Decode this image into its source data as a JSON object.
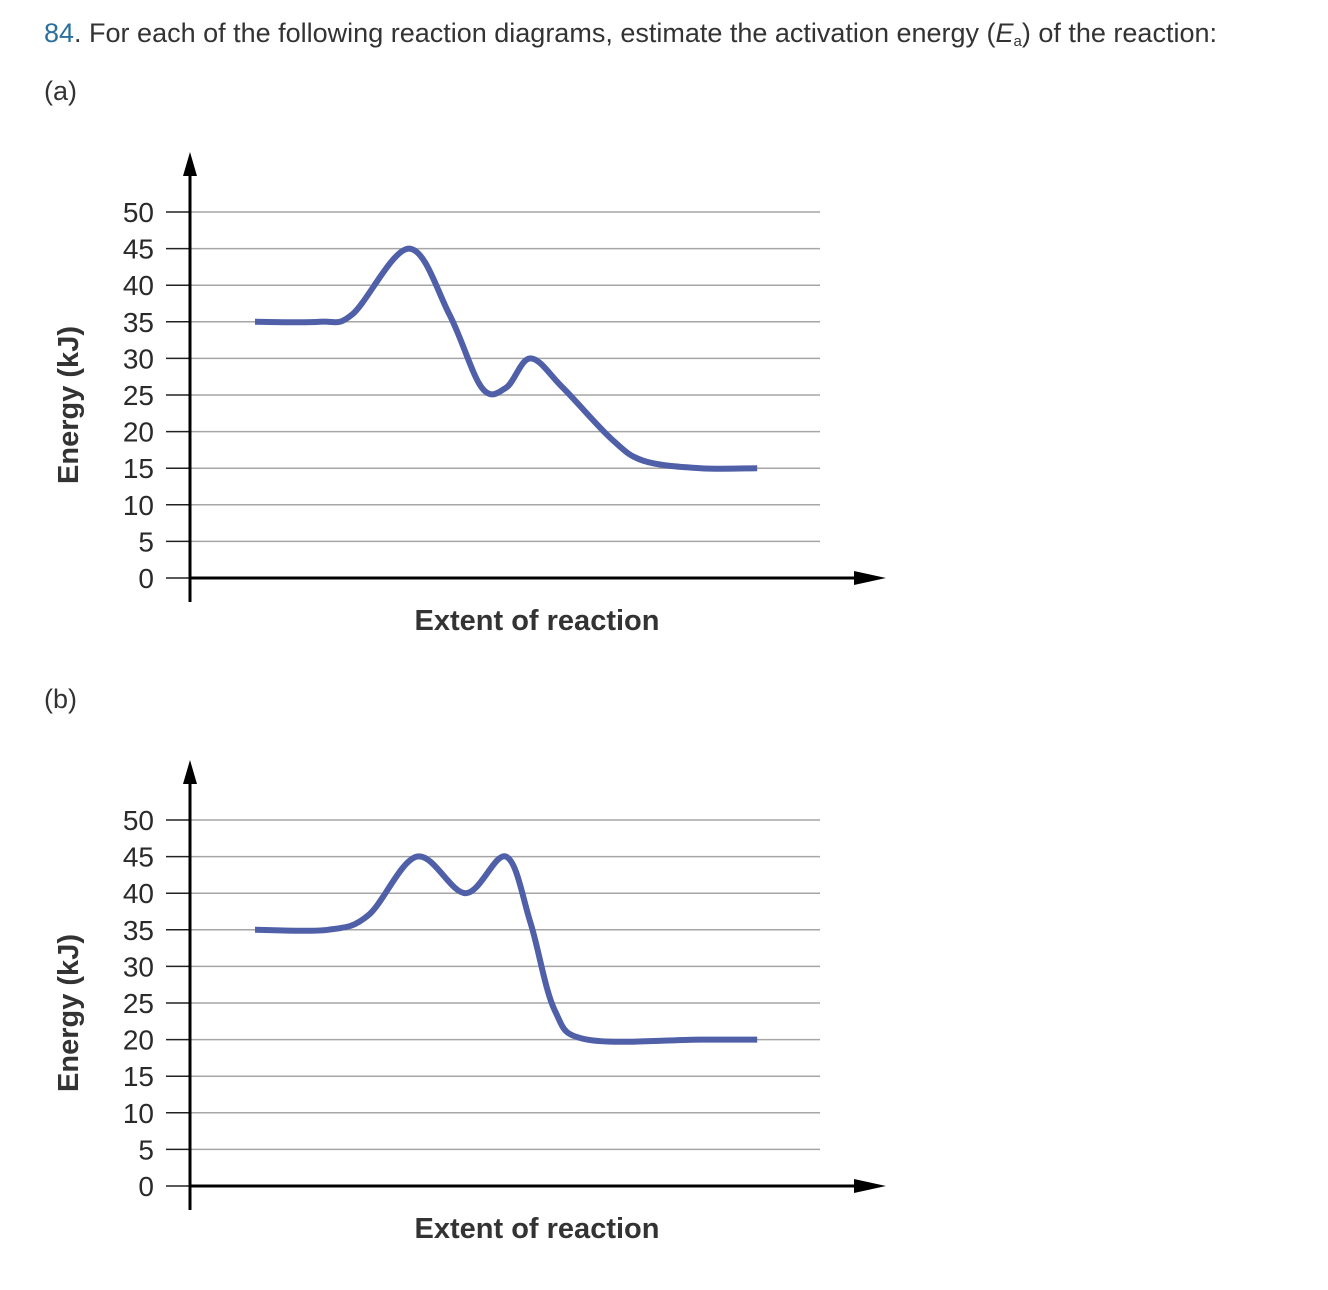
{
  "question": {
    "number": "84",
    "text_before": ". For each of the following reaction diagrams, estimate the activation energy (",
    "var": "E",
    "subscript": "a",
    "text_after": ") of the reaction:"
  },
  "parts": [
    {
      "label": "(a)"
    },
    {
      "label": "(b)"
    }
  ],
  "chart_data": [
    {
      "type": "line",
      "title": "",
      "xlabel": "Extent of reaction",
      "ylabel": "Energy (kJ)",
      "ylim": [
        0,
        50
      ],
      "yticks": [
        "0",
        "5",
        "10",
        "15",
        "20",
        "25",
        "30",
        "35",
        "40",
        "45",
        "50"
      ],
      "grid": true,
      "line_color": "#5060a8",
      "points": [
        [
          0,
          35
        ],
        [
          8,
          35
        ],
        [
          12,
          36
        ],
        [
          19,
          45
        ],
        [
          24,
          36
        ],
        [
          28,
          26
        ],
        [
          31,
          26
        ],
        [
          34,
          30
        ],
        [
          38,
          26
        ],
        [
          44,
          19
        ],
        [
          48,
          16
        ],
        [
          55,
          15
        ],
        [
          62,
          15
        ]
      ]
    },
    {
      "type": "line",
      "title": "",
      "xlabel": "Extent of reaction",
      "ylabel": "Energy (kJ)",
      "ylim": [
        0,
        50
      ],
      "yticks": [
        "0",
        "5",
        "10",
        "15",
        "20",
        "25",
        "30",
        "35",
        "40",
        "45",
        "50"
      ],
      "grid": true,
      "line_color": "#5060a8",
      "points": [
        [
          0,
          35
        ],
        [
          9,
          35
        ],
        [
          14,
          37
        ],
        [
          20,
          45
        ],
        [
          26,
          40
        ],
        [
          31,
          45
        ],
        [
          34,
          36
        ],
        [
          37,
          24
        ],
        [
          41,
          20
        ],
        [
          55,
          20
        ],
        [
          62,
          20
        ]
      ]
    }
  ]
}
